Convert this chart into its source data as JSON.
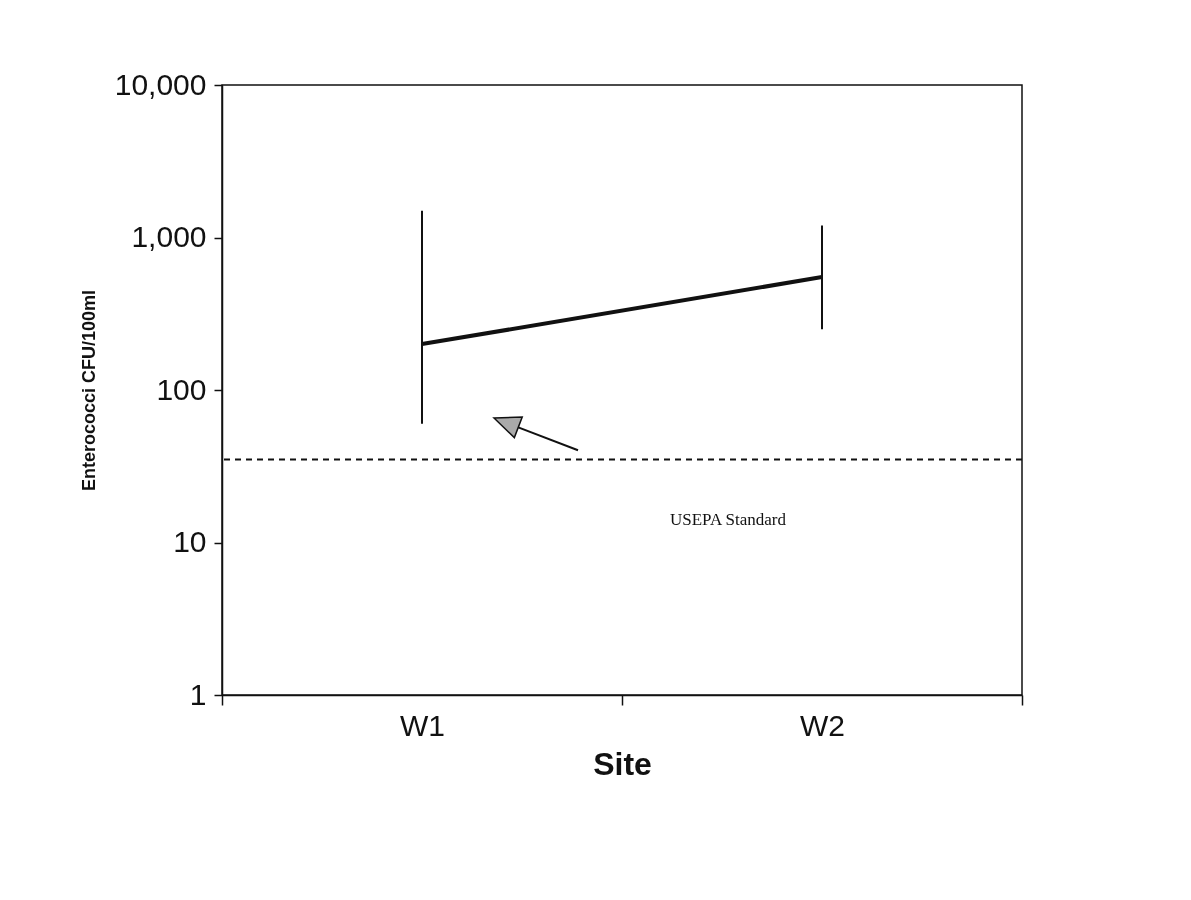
{
  "chart_data": {
    "type": "line",
    "xlabel": "Site",
    "ylabel": "Enterococci CFU/100ml",
    "categories": [
      "W1",
      "W2"
    ],
    "series": [
      {
        "color": "#111111",
        "values": [
          200,
          550
        ],
        "errors": [
          [
            60,
            1500
          ],
          [
            250,
            1200
          ]
        ]
      }
    ],
    "log": true,
    "ylim": [
      1,
      10000
    ],
    "yticks": [
      1,
      10,
      100,
      {
        "value": 1000,
        "label": "1,000"
      },
      {
        "value": 10000,
        "label": "10,000"
      }
    ],
    "ref_lines": [
      {
        "axis": "y",
        "value": 35,
        "label": "USEPA Standard",
        "line_style": "dashed",
        "color": "#111111"
      }
    ],
    "grid": false,
    "marker": "none",
    "line_style": "solid"
  }
}
